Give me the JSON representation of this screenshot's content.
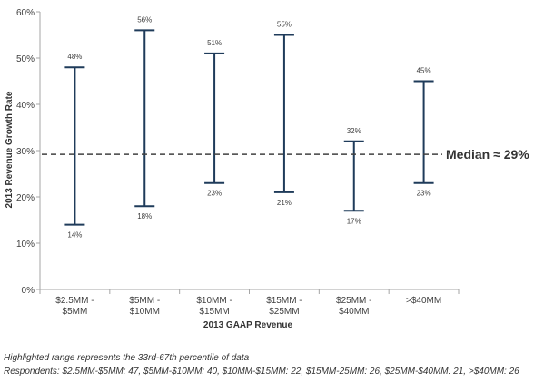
{
  "chart_data": {
    "type": "range",
    "title": "",
    "xlabel": "2013 GAAP  Revenue",
    "ylabel": "2013 Revenue  Growth Rate",
    "ylim": [
      0,
      60
    ],
    "yticks": [
      "0%",
      "10%",
      "20%",
      "30%",
      "40%",
      "50%",
      "60%"
    ],
    "categories": [
      [
        "$2.5MM -",
        "$5MM"
      ],
      [
        "$5MM -",
        "$10MM"
      ],
      [
        "$10MM -",
        "$15MM"
      ],
      [
        "$15MM -",
        "$25MM"
      ],
      [
        "$25MM -",
        "$40MM"
      ],
      [
        ">$40MM"
      ]
    ],
    "high": [
      48,
      56,
      51,
      55,
      32,
      45
    ],
    "low": [
      14,
      18,
      23,
      21,
      17,
      23
    ],
    "high_labels": [
      "48%",
      "56%",
      "51%",
      "55%",
      "32%",
      "45%"
    ],
    "low_labels": [
      "14%",
      "18%",
      "23%",
      "21%",
      "17%",
      "23%"
    ],
    "median": 29,
    "median_label": "Median ≈ 29%",
    "grid": false,
    "colors": {
      "range": "#1f3b5a",
      "median": "#404040",
      "axis": "#a6a6a6"
    }
  },
  "footnotes": {
    "line1": "Highlighted range represents the 33rd-67th percentile of data",
    "line2": "Respondents: $2.5MM-$5MM: 47, $5MM-$10MM: 40, $10MM-$15MM: 22, $15MM-25MM: 26, $25MM-$40MM: 21, >$40MM: 26"
  }
}
